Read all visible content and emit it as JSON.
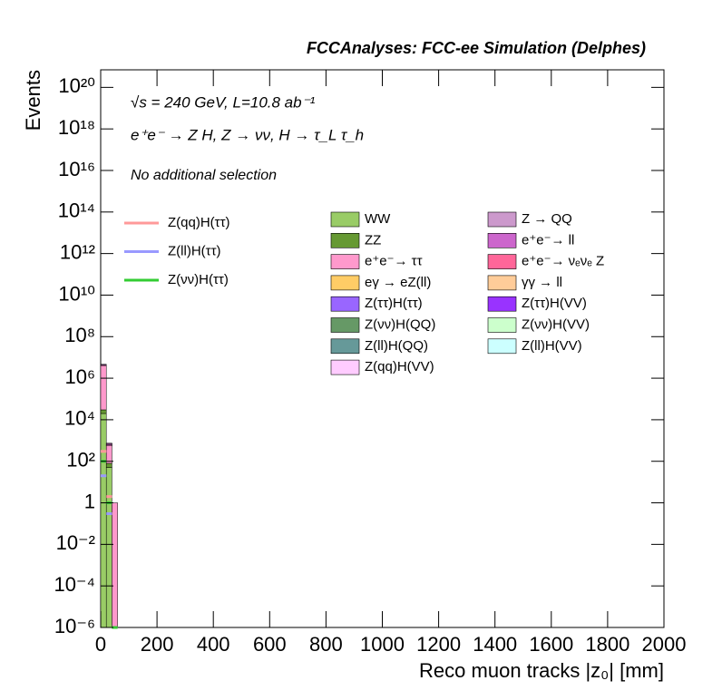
{
  "chart_data": {
    "type": "stacked_histogram",
    "title": "FCCAnalyses: FCC-ee Simulation (Delphes)",
    "annotations": [
      "√s = 240 GeV, L=10.8 ab⁻¹",
      "e⁺e⁻ → Z H, Z → νν, H → τ_L τ_h",
      "No additional selection"
    ],
    "xlabel": "Reco muon tracks |z₀| [mm]",
    "ylabel": "Events",
    "log_y": true,
    "bins": [
      0,
      20,
      40,
      60
    ],
    "xlim": [
      0,
      2000
    ],
    "xticks": [
      0,
      200,
      400,
      600,
      800,
      1000,
      1200,
      1400,
      1600,
      1800,
      2000
    ],
    "ylim": [
      1e-06,
      7e+20
    ],
    "yticks": [
      {
        "value": 1e-06,
        "label": "10⁻⁶"
      },
      {
        "value": 0.0001,
        "label": "10⁻⁴"
      },
      {
        "value": 0.01,
        "label": "10⁻²"
      },
      1,
      {
        "value": 100,
        "label": "10²"
      },
      {
        "value": 10000.0,
        "label": "10⁴"
      },
      {
        "value": 1000000.0,
        "label": "10⁶"
      },
      {
        "value": 100000000.0,
        "label": "10⁸"
      },
      {
        "value": 10000000000.0,
        "label": "10¹⁰"
      },
      {
        "value": 1000000000000.0,
        "label": "10¹²"
      },
      {
        "value": 100000000000000.0,
        "label": "10¹⁴"
      },
      {
        "value": 1e+16,
        "label": "10¹⁶"
      },
      {
        "value": 1e+18,
        "label": "10¹⁸"
      },
      {
        "value": 1e+20,
        "label": "10²⁰"
      }
    ],
    "series": [
      {
        "name": "WW",
        "color": "#99cc66",
        "values": [
          20000,
          50,
          0
        ]
      },
      {
        "name": "ZZ",
        "color": "#669933",
        "values": [
          10000,
          30,
          0
        ]
      },
      {
        "name": "e⁺e⁻→ ττ",
        "color": "#ff99cc",
        "values": [
          4000000,
          500,
          1
        ]
      },
      {
        "name": "eγ → eZ(ll)",
        "color": "#ffcc66",
        "values": [
          2000,
          5,
          0
        ]
      },
      {
        "name": "Z(ττ)H(ττ)",
        "color": "#9966ff",
        "values": [
          50,
          1,
          0
        ]
      },
      {
        "name": "Z(νν)H(QQ)",
        "color": "#669966",
        "values": [
          100,
          2,
          0
        ]
      },
      {
        "name": "Z(ll)H(QQ)",
        "color": "#669999",
        "values": [
          30,
          0.5,
          0
        ]
      },
      {
        "name": "Z(qq)H(VV)",
        "color": "#ffccff",
        "values": [
          500,
          3,
          0
        ]
      },
      {
        "name": "Z → QQ",
        "color": "#cc99cc",
        "values": [
          100000,
          20,
          0
        ]
      },
      {
        "name": "e⁺e⁻→ ll",
        "color": "#cc66cc",
        "values": [
          500000,
          100,
          0
        ]
      },
      {
        "name": "e⁺e⁻→ νₑνₑ Z",
        "color": "#ff6699",
        "values": [
          3000,
          8,
          0
        ]
      },
      {
        "name": "γγ → ll",
        "color": "#ffcc99",
        "values": [
          1000,
          3,
          0
        ]
      },
      {
        "name": "Z(ττ)H(VV)",
        "color": "#9933ff",
        "values": [
          20,
          0.2,
          0
        ]
      },
      {
        "name": "Z(νν)H(VV)",
        "color": "#ccffcc",
        "values": [
          40,
          0.4,
          0
        ]
      },
      {
        "name": "Z(ll)H(VV)",
        "color": "#ccffff",
        "values": [
          10,
          0.1,
          0
        ]
      }
    ],
    "signals": [
      {
        "name": "Z(qq)H(ττ)",
        "color": "#ff9999",
        "values": [
          300,
          2,
          0
        ]
      },
      {
        "name": "Z(ll)H(ττ)",
        "color": "#9999ff",
        "values": [
          20,
          0.3,
          0
        ]
      },
      {
        "name": "Z(νν)H(ττ)",
        "color": "#33cc33",
        "values": [
          100,
          1,
          0
        ]
      }
    ]
  }
}
